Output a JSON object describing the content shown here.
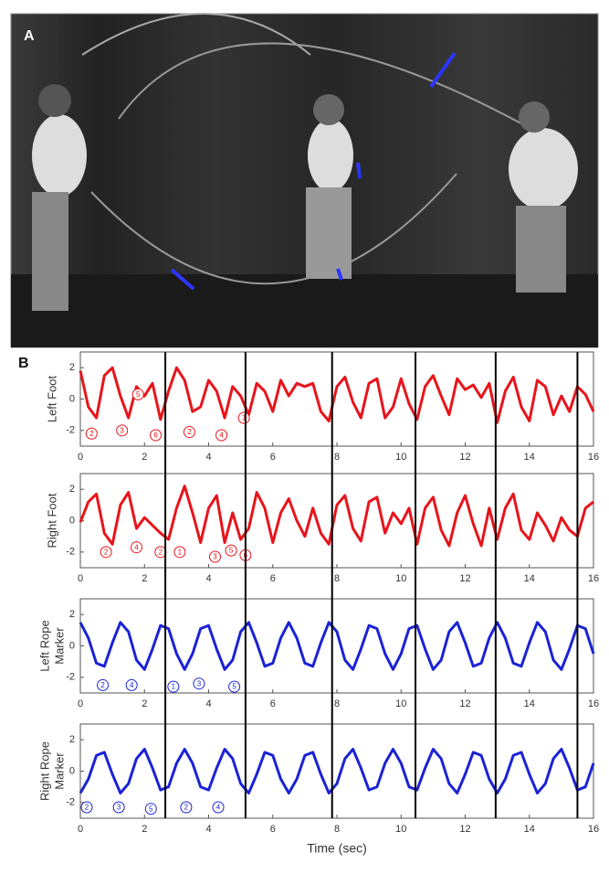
{
  "panel_labels": [
    "A",
    "B"
  ],
  "event_lines": [
    2.65,
    5.15,
    7.85,
    10.45,
    12.95,
    15.5
  ],
  "chart_data": [
    {
      "type": "line",
      "ylabel": [
        "Left Foot"
      ],
      "color": "#e8141b",
      "x": [
        0,
        0.25,
        0.5,
        0.75,
        1,
        1.25,
        1.5,
        1.75,
        2,
        2.25,
        2.5,
        2.75,
        3,
        3.25,
        3.5,
        3.75,
        4,
        4.25,
        4.5,
        4.75,
        5,
        5.25,
        5.5,
        5.75,
        6,
        6.25,
        6.5,
        6.75,
        7,
        7.25,
        7.5,
        7.75,
        8,
        8.25,
        8.5,
        8.75,
        9,
        9.25,
        9.5,
        9.75,
        10,
        10.25,
        10.5,
        10.75,
        11,
        11.25,
        11.5,
        11.75,
        12,
        12.25,
        12.5,
        12.75,
        13,
        13.25,
        13.5,
        13.75,
        14,
        14.25,
        14.5,
        14.75,
        15,
        15.25,
        15.5,
        15.75,
        16
      ],
      "values": [
        1.8,
        -0.5,
        -1.2,
        1.5,
        2.0,
        0.2,
        -1.2,
        0.8,
        0.2,
        1.0,
        -1.3,
        0.5,
        2.0,
        1.2,
        -0.8,
        -0.5,
        1.2,
        0.5,
        -1.2,
        0.8,
        0.2,
        -1.0,
        1.0,
        0.5,
        -0.8,
        1.2,
        0.2,
        1.0,
        0.8,
        1.0,
        -0.8,
        -1.4,
        0.8,
        1.4,
        -0.2,
        -1.2,
        1.0,
        1.3,
        -1.2,
        -0.5,
        1.3,
        -0.3,
        -1.3,
        0.8,
        1.5,
        0.2,
        -1.0,
        1.3,
        0.6,
        0.9,
        0.1,
        1.0,
        -1.5,
        0.5,
        1.4,
        -0.5,
        -1.4,
        1.2,
        0.8,
        -1.0,
        0.2,
        -0.8,
        0.8,
        0.3,
        -0.8
      ],
      "xlim": [
        0,
        16
      ],
      "xticks": [
        0,
        2,
        4,
        6,
        8,
        10,
        12,
        14,
        16
      ],
      "ylim": [
        -3,
        3
      ],
      "yticks": [
        -2,
        0,
        2
      ],
      "annotations": [
        {
          "x": 0.35,
          "y": -2.2,
          "label": "2"
        },
        {
          "x": 1.3,
          "y": -2.0,
          "label": "3"
        },
        {
          "x": 1.8,
          "y": 0.3,
          "label": "5"
        },
        {
          "x": 2.35,
          "y": -2.3,
          "label": "6"
        },
        {
          "x": 3.4,
          "y": -2.1,
          "label": "2"
        },
        {
          "x": 4.4,
          "y": -2.3,
          "label": "4"
        },
        {
          "x": 5.1,
          "y": -1.2,
          "label": "1"
        }
      ]
    },
    {
      "type": "line",
      "ylabel": [
        "Right Foot"
      ],
      "color": "#e8141b",
      "x": [
        0,
        0.25,
        0.5,
        0.75,
        1,
        1.25,
        1.5,
        1.75,
        2,
        2.25,
        2.5,
        2.75,
        3,
        3.25,
        3.5,
        3.75,
        4,
        4.25,
        4.5,
        4.75,
        5,
        5.25,
        5.5,
        5.75,
        6,
        6.25,
        6.5,
        6.75,
        7,
        7.25,
        7.5,
        7.75,
        8,
        8.25,
        8.5,
        8.75,
        9,
        9.25,
        9.5,
        9.75,
        10,
        10.25,
        10.5,
        10.75,
        11,
        11.25,
        11.5,
        11.75,
        12,
        12.25,
        12.5,
        12.75,
        13,
        13.25,
        13.5,
        13.75,
        14,
        14.25,
        14.5,
        14.75,
        15,
        15.25,
        15.5,
        15.75,
        16
      ],
      "values": [
        -0.1,
        1.2,
        1.7,
        -0.8,
        -1.5,
        1.0,
        1.8,
        -0.5,
        0.2,
        -0.3,
        -0.8,
        -1.2,
        0.8,
        2.2,
        0.5,
        -1.4,
        0.8,
        1.6,
        -1.4,
        0.5,
        -1.2,
        -0.5,
        1.8,
        0.8,
        -1.4,
        0.5,
        1.4,
        0.0,
        -1.0,
        0.8,
        -0.8,
        -1.5,
        1.0,
        1.6,
        -0.5,
        -1.3,
        1.2,
        1.5,
        -0.8,
        0.5,
        -0.2,
        0.8,
        -1.5,
        0.8,
        1.5,
        -0.6,
        -1.6,
        0.5,
        1.6,
        -0.2,
        -1.6,
        0.8,
        -1.2,
        0.8,
        1.7,
        -0.6,
        -1.2,
        0.5,
        -0.3,
        -1.3,
        0.2,
        -0.6,
        -1.0,
        0.8,
        1.2
      ],
      "xlim": [
        0,
        16
      ],
      "xticks": [
        0,
        2,
        4,
        6,
        8,
        10,
        12,
        14,
        16
      ],
      "ylim": [
        -3,
        3
      ],
      "yticks": [
        -2,
        0,
        2
      ],
      "annotations": [
        {
          "x": 0.8,
          "y": -2.0,
          "label": "2"
        },
        {
          "x": 1.75,
          "y": -1.7,
          "label": "4"
        },
        {
          "x": 2.5,
          "y": -2.0,
          "label": "2"
        },
        {
          "x": 3.1,
          "y": -2.0,
          "label": "1"
        },
        {
          "x": 4.2,
          "y": -2.3,
          "label": "3"
        },
        {
          "x": 4.7,
          "y": -1.9,
          "label": "5"
        },
        {
          "x": 5.15,
          "y": -2.2,
          "label": "6"
        }
      ]
    },
    {
      "type": "line",
      "ylabel": [
        "Left Rope",
        "Marker"
      ],
      "color": "#1a22d6",
      "x": [
        0,
        0.25,
        0.5,
        0.75,
        1,
        1.25,
        1.5,
        1.75,
        2,
        2.25,
        2.5,
        2.75,
        3,
        3.25,
        3.5,
        3.75,
        4,
        4.25,
        4.5,
        4.75,
        5,
        5.25,
        5.5,
        5.75,
        6,
        6.25,
        6.5,
        6.75,
        7,
        7.25,
        7.5,
        7.75,
        8,
        8.25,
        8.5,
        8.75,
        9,
        9.25,
        9.5,
        9.75,
        10,
        10.25,
        10.5,
        10.75,
        11,
        11.25,
        11.5,
        11.75,
        12,
        12.25,
        12.5,
        12.75,
        13,
        13.25,
        13.5,
        13.75,
        14,
        14.25,
        14.5,
        14.75,
        15,
        15.25,
        15.5,
        15.75,
        16
      ],
      "values": [
        1.5,
        0.5,
        -1.1,
        -1.3,
        0.2,
        1.5,
        0.9,
        -0.9,
        -1.5,
        -0.2,
        1.3,
        1.1,
        -0.5,
        -1.5,
        -0.5,
        1.1,
        1.3,
        -0.2,
        -1.5,
        -0.9,
        0.9,
        1.5,
        0.2,
        -1.3,
        -1.1,
        0.5,
        1.5,
        0.5,
        -1.1,
        -1.3,
        0.2,
        1.5,
        0.9,
        -0.9,
        -1.5,
        -0.2,
        1.3,
        1.1,
        -0.5,
        -1.5,
        -0.5,
        1.1,
        1.3,
        -0.2,
        -1.5,
        -0.9,
        0.9,
        1.5,
        0.2,
        -1.3,
        -1.1,
        0.5,
        1.5,
        0.5,
        -1.1,
        -1.3,
        0.2,
        1.5,
        0.9,
        -0.9,
        -1.5,
        -0.2,
        1.3,
        1.1,
        -0.5
      ],
      "xlim": [
        0,
        16
      ],
      "xticks": [
        0,
        2,
        4,
        6,
        8,
        10,
        12,
        14,
        16
      ],
      "ylim": [
        -3,
        3
      ],
      "yticks": [
        -2,
        0,
        2
      ],
      "annotations": [
        {
          "x": 0.7,
          "y": -2.5,
          "label": "2"
        },
        {
          "x": 1.6,
          "y": -2.5,
          "label": "4"
        },
        {
          "x": 2.9,
          "y": -2.6,
          "label": "1"
        },
        {
          "x": 3.7,
          "y": -2.4,
          "label": "3"
        },
        {
          "x": 4.8,
          "y": -2.6,
          "label": "5"
        }
      ]
    },
    {
      "type": "line",
      "ylabel": [
        "Right Rope",
        "Marker"
      ],
      "xlabel": "Time (sec)",
      "color": "#1a22d6",
      "x": [
        0,
        0.25,
        0.5,
        0.75,
        1,
        1.25,
        1.5,
        1.75,
        2,
        2.25,
        2.5,
        2.75,
        3,
        3.25,
        3.5,
        3.75,
        4,
        4.25,
        4.5,
        4.75,
        5,
        5.25,
        5.5,
        5.75,
        6,
        6.25,
        6.5,
        6.75,
        7,
        7.25,
        7.5,
        7.75,
        8,
        8.25,
        8.5,
        8.75,
        9,
        9.25,
        9.5,
        9.75,
        10,
        10.25,
        10.5,
        10.75,
        11,
        11.25,
        11.5,
        11.75,
        12,
        12.25,
        12.5,
        12.75,
        13,
        13.25,
        13.5,
        13.75,
        14,
        14.25,
        14.5,
        14.75,
        15,
        15.25,
        15.5,
        15.75,
        16
      ],
      "values": [
        -1.4,
        -0.5,
        1.0,
        1.2,
        -0.2,
        -1.4,
        -0.8,
        0.8,
        1.4,
        0.2,
        -1.2,
        -1.0,
        0.5,
        1.4,
        0.5,
        -1.0,
        -1.2,
        0.2,
        1.4,
        0.8,
        -0.8,
        -1.4,
        -0.2,
        1.2,
        1.0,
        -0.5,
        -1.4,
        -0.5,
        1.0,
        1.2,
        -0.2,
        -1.4,
        -0.8,
        0.8,
        1.4,
        0.2,
        -1.2,
        -1.0,
        0.5,
        1.4,
        0.5,
        -1.0,
        -1.2,
        0.2,
        1.4,
        0.8,
        -0.8,
        -1.4,
        -0.2,
        1.2,
        1.0,
        -0.5,
        -1.4,
        -0.5,
        1.0,
        1.2,
        -0.2,
        -1.4,
        -0.8,
        0.8,
        1.4,
        0.2,
        -1.2,
        -1.0,
        0.5
      ],
      "xlim": [
        0,
        16
      ],
      "xticks": [
        0,
        2,
        4,
        6,
        8,
        10,
        12,
        14,
        16
      ],
      "ylim": [
        -3,
        3
      ],
      "yticks": [
        -2,
        0,
        2
      ],
      "annotations": [
        {
          "x": 0.2,
          "y": -2.3,
          "label": "2"
        },
        {
          "x": 1.2,
          "y": -2.3,
          "label": "3"
        },
        {
          "x": 2.2,
          "y": -2.4,
          "label": "5"
        },
        {
          "x": 3.3,
          "y": -2.3,
          "label": "2"
        },
        {
          "x": 4.3,
          "y": -2.3,
          "label": "4"
        }
      ]
    }
  ]
}
